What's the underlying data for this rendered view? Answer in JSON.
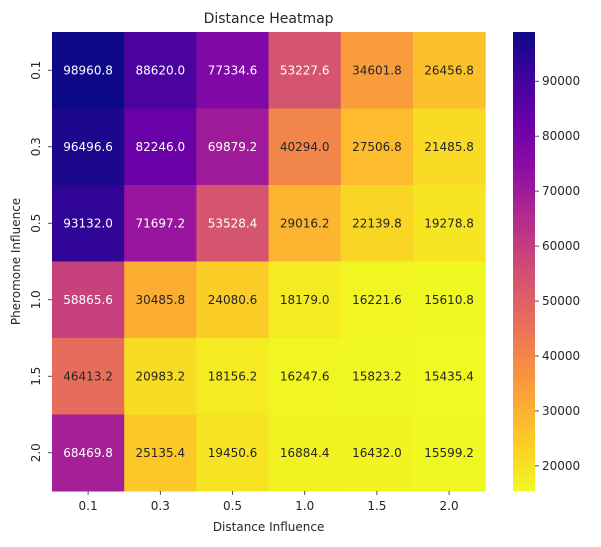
{
  "chart_data": {
    "type": "heatmap",
    "title": "Distance Heatmap",
    "xlabel": "Distance Influence",
    "ylabel": "Pheromone Influence",
    "x_categories": [
      "0.1",
      "0.3",
      "0.5",
      "1.0",
      "1.5",
      "2.0"
    ],
    "y_categories": [
      "0.1",
      "0.3",
      "0.5",
      "1.0",
      "1.5",
      "2.0"
    ],
    "values": [
      [
        98960.8,
        88620.0,
        77334.6,
        53227.6,
        34601.8,
        26456.8
      ],
      [
        96496.6,
        82246.0,
        69879.2,
        40294.0,
        27506.8,
        21485.8
      ],
      [
        93132.0,
        71697.2,
        53528.4,
        29016.2,
        22139.8,
        19278.8
      ],
      [
        58865.6,
        30485.8,
        24080.6,
        18179.0,
        16221.6,
        15610.8
      ],
      [
        46413.2,
        20983.2,
        18156.2,
        16247.6,
        15823.2,
        15435.4
      ],
      [
        68469.8,
        25135.4,
        19450.6,
        16884.4,
        16432.0,
        15599.2
      ]
    ],
    "colormap": "plasma_r",
    "value_range": [
      15435.4,
      98960.8
    ],
    "colorbar_ticks": [
      20000,
      30000,
      40000,
      50000,
      60000,
      70000,
      80000,
      90000
    ],
    "colorbar_tick_labels": [
      "20000",
      "30000",
      "40000",
      "50000",
      "60000",
      "70000",
      "80000",
      "90000"
    ],
    "legend": "colorbar-right",
    "grid": false
  }
}
